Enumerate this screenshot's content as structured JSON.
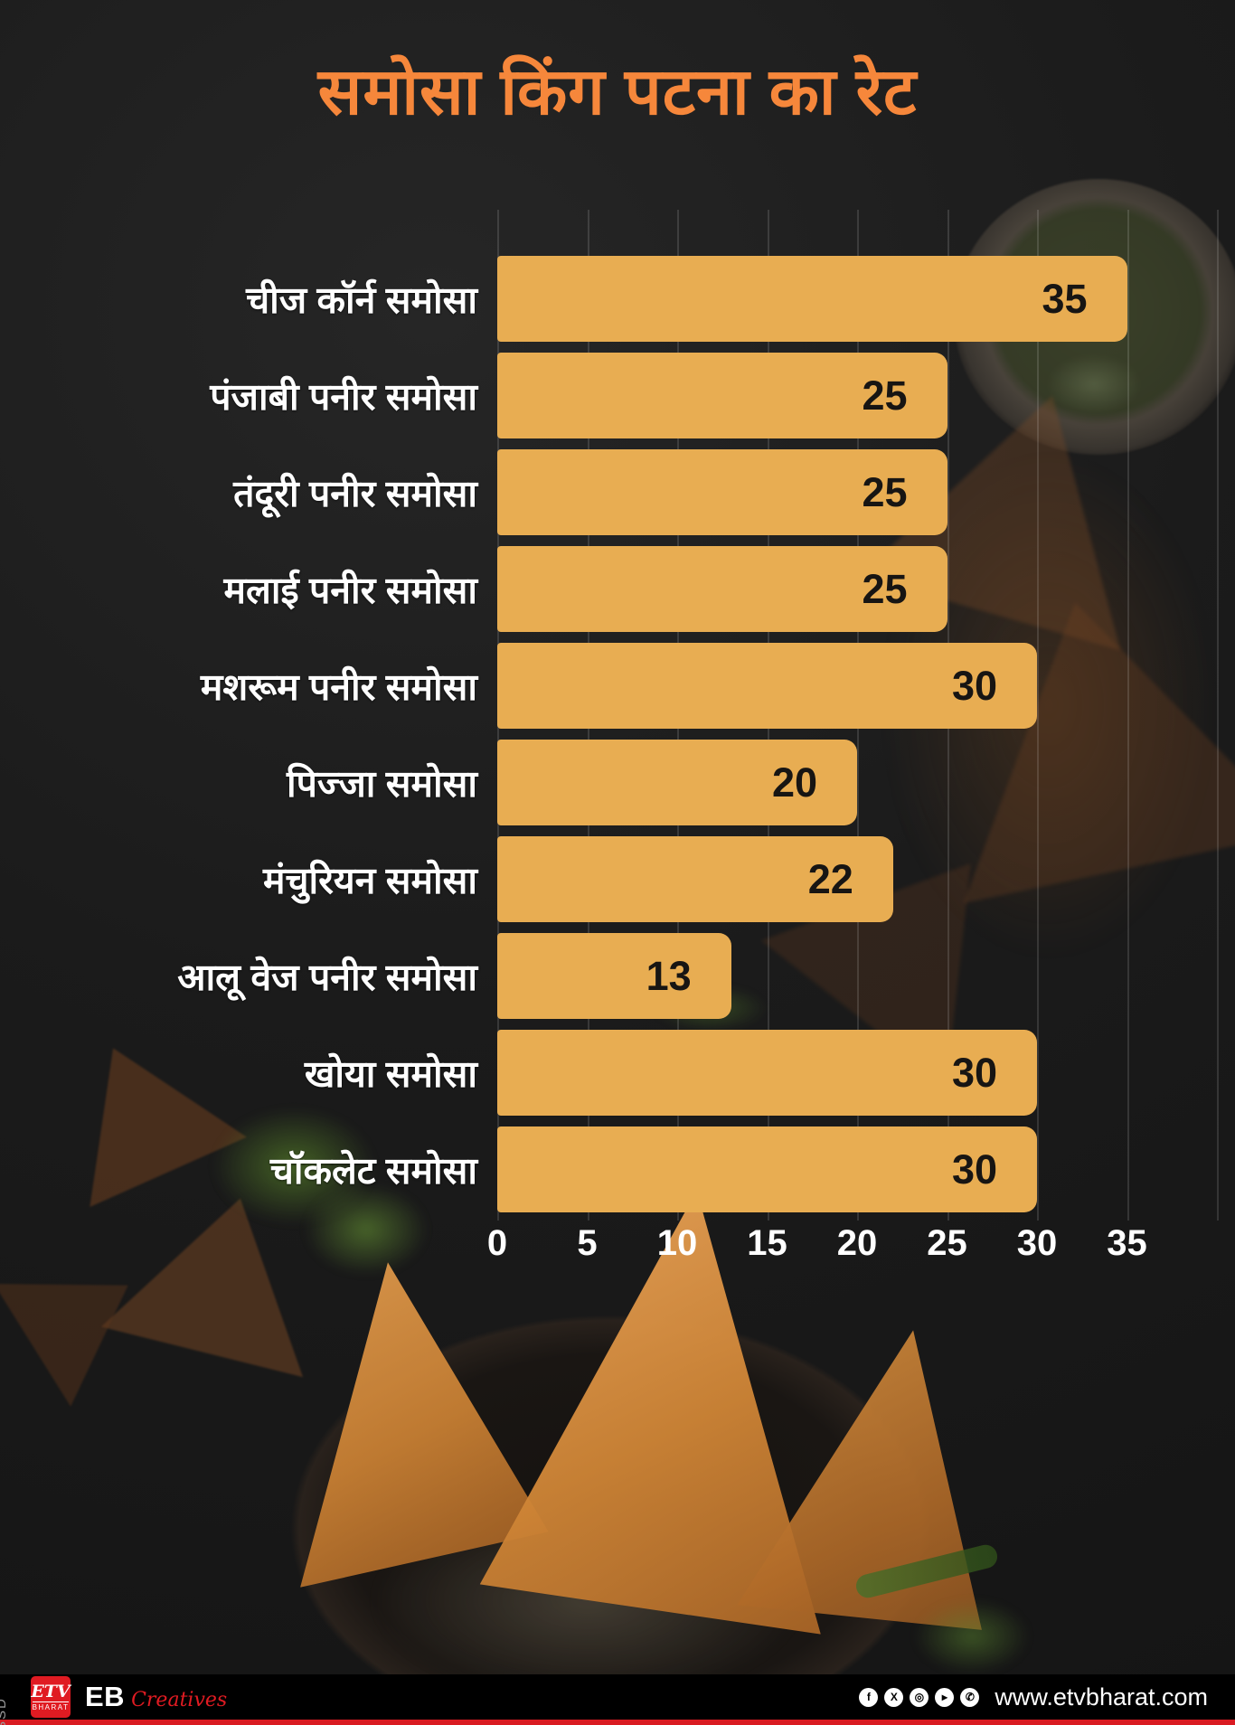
{
  "title": "समोसा किंग पटना का रेट",
  "chart_data": {
    "type": "bar",
    "orientation": "horizontal",
    "title": "समोसा किंग पटना का रेट",
    "categories": [
      "चीज कॉर्न समोसा",
      "पंजाबी पनीर समोसा",
      "तंदूरी पनीर समोसा",
      "मलाई पनीर समोसा",
      "मशरूम पनीर समोसा",
      "पिज्जा समोसा",
      "मंचुरियन समोसा",
      "आलू वेज पनीर समोसा",
      "खोया समोसा",
      "चॉकलेट समोसा"
    ],
    "values": [
      35,
      25,
      25,
      25,
      30,
      20,
      22,
      13,
      30,
      30
    ],
    "xlim": [
      0,
      35
    ],
    "x_ticks": [
      0,
      5,
      10,
      15,
      20,
      25,
      30,
      35
    ],
    "grid": true,
    "value_labels": true,
    "bar_color": "#E8AD52",
    "value_label_color": "#171513",
    "category_label_color": "#FFFFFF",
    "legend": "none"
  },
  "footer": {
    "watermark": "SSD",
    "etv_logo_text": "ETV",
    "etv_logo_subtext": "BHARAT",
    "brand": "EB",
    "brand_suffix": "Creatives",
    "social_icons": [
      "facebook-icon",
      "x-icon",
      "instagram-icon",
      "youtube-icon",
      "whatsapp-icon"
    ],
    "website": "www.etvbharat.com"
  },
  "colors": {
    "title_orange": "#F6873B",
    "bar_amber": "#E8AD52",
    "accent_red": "#D91B22",
    "background_dark": "#1B1B1B"
  }
}
